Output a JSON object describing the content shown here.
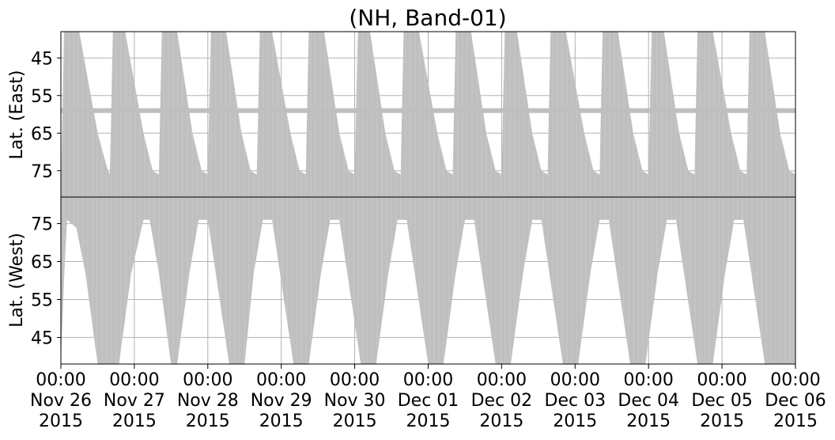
{
  "chart_data": {
    "type": "area",
    "title": "(NH, Band-01)",
    "x_start": "2015-11-26 00:00",
    "x_end": "2015-12-06 00:00",
    "x_ticks": [
      {
        "time": "00:00",
        "date": "Nov 26",
        "year": "2015"
      },
      {
        "time": "00:00",
        "date": "Nov 27",
        "year": "2015"
      },
      {
        "time": "00:00",
        "date": "Nov 28",
        "year": "2015"
      },
      {
        "time": "00:00",
        "date": "Nov 29",
        "year": "2015"
      },
      {
        "time": "00:00",
        "date": "Nov 30",
        "year": "2015"
      },
      {
        "time": "00:00",
        "date": "Dec 01",
        "year": "2015"
      },
      {
        "time": "00:00",
        "date": "Dec 02",
        "year": "2015"
      },
      {
        "time": "00:00",
        "date": "Dec 03",
        "year": "2015"
      },
      {
        "time": "00:00",
        "date": "Dec 04",
        "year": "2015"
      },
      {
        "time": "00:00",
        "date": "Dec 05",
        "year": "2015"
      },
      {
        "time": "00:00",
        "date": "Dec 06",
        "year": "2015"
      }
    ],
    "grid": true,
    "color": "#bfbfbf",
    "panels": [
      {
        "name": "east",
        "ylabel": "Lat. (East)",
        "yticks": [
          45,
          55,
          65,
          75
        ],
        "ylim": [
          38,
          82
        ],
        "y_inverted": true,
        "stripe_latitude": 59,
        "coverage": [
          {
            "x": "2015-11-26 00:00",
            "lat": 82
          },
          {
            "x": "2015-11-26 01:00",
            "lat": 38
          },
          {
            "x": "2015-11-26 06:00",
            "lat": 38
          },
          {
            "x": "2015-11-26 12:00",
            "lat": 65
          },
          {
            "x": "2015-11-26 15:00",
            "lat": 74
          },
          {
            "x": "2015-11-26 16:00",
            "lat": 76
          },
          {
            "x": "2015-11-26 17:00",
            "lat": 38
          },
          {
            "x": "2015-11-26 21:00",
            "lat": 38
          },
          {
            "x": "2015-11-27 03:00",
            "lat": 65
          },
          {
            "x": "2015-11-27 06:00",
            "lat": 75
          },
          {
            "x": "2015-11-27 08:00",
            "lat": 76
          },
          {
            "x": "2015-11-27 09:00",
            "lat": 38
          },
          {
            "x": "2015-11-27 14:00",
            "lat": 38
          },
          {
            "x": "2015-11-27 19:00",
            "lat": 65
          },
          {
            "x": "2015-11-27 22:00",
            "lat": 75
          },
          {
            "x": "2015-11-28 00:00",
            "lat": 76
          },
          {
            "x": "2015-11-28 01:00",
            "lat": 38
          },
          {
            "x": "2015-11-28 06:00",
            "lat": 38
          },
          {
            "x": "2015-11-28 11:00",
            "lat": 65
          },
          {
            "x": "2015-11-28 14:00",
            "lat": 75
          },
          {
            "x": "2015-11-28 16:00",
            "lat": 76
          },
          {
            "x": "2015-11-28 17:00",
            "lat": 38
          },
          {
            "x": "2015-11-28 21:00",
            "lat": 38
          },
          {
            "x": "2015-11-29 03:00",
            "lat": 65
          },
          {
            "x": "2015-11-29 06:00",
            "lat": 75
          },
          {
            "x": "2015-11-29 08:00",
            "lat": 76
          },
          {
            "x": "2015-11-29 09:00",
            "lat": 38
          },
          {
            "x": "2015-11-29 14:00",
            "lat": 38
          },
          {
            "x": "2015-11-29 19:00",
            "lat": 65
          },
          {
            "x": "2015-11-29 22:00",
            "lat": 75
          },
          {
            "x": "2015-11-30 00:00",
            "lat": 76
          },
          {
            "x": "2015-11-30 01:00",
            "lat": 38
          },
          {
            "x": "2015-11-30 05:00",
            "lat": 38
          },
          {
            "x": "2015-11-30 10:00",
            "lat": 65
          },
          {
            "x": "2015-11-30 13:00",
            "lat": 75
          },
          {
            "x": "2015-11-30 15:00",
            "lat": 76
          },
          {
            "x": "2015-11-30 16:00",
            "lat": 38
          },
          {
            "x": "2015-11-30 21:00",
            "lat": 38
          },
          {
            "x": "2015-12-01 03:00",
            "lat": 65
          },
          {
            "x": "2015-12-01 06:00",
            "lat": 75
          },
          {
            "x": "2015-12-01 08:00",
            "lat": 76
          },
          {
            "x": "2015-12-01 09:00",
            "lat": 38
          },
          {
            "x": "2015-12-01 14:00",
            "lat": 38
          },
          {
            "x": "2015-12-01 19:00",
            "lat": 65
          },
          {
            "x": "2015-12-01 22:00",
            "lat": 75
          },
          {
            "x": "2015-12-02 00:00",
            "lat": 76
          },
          {
            "x": "2015-12-02 01:00",
            "lat": 38
          },
          {
            "x": "2015-12-02 05:00",
            "lat": 38
          },
          {
            "x": "2015-12-02 10:00",
            "lat": 65
          },
          {
            "x": "2015-12-02 13:00",
            "lat": 75
          },
          {
            "x": "2015-12-02 15:00",
            "lat": 76
          },
          {
            "x": "2015-12-02 16:00",
            "lat": 38
          },
          {
            "x": "2015-12-02 21:00",
            "lat": 38
          },
          {
            "x": "2015-12-03 03:00",
            "lat": 65
          },
          {
            "x": "2015-12-03 06:00",
            "lat": 75
          },
          {
            "x": "2015-12-03 08:00",
            "lat": 76
          },
          {
            "x": "2015-12-03 09:00",
            "lat": 38
          },
          {
            "x": "2015-12-03 14:00",
            "lat": 38
          },
          {
            "x": "2015-12-03 19:00",
            "lat": 65
          },
          {
            "x": "2015-12-03 22:00",
            "lat": 75
          },
          {
            "x": "2015-12-04 00:00",
            "lat": 76
          },
          {
            "x": "2015-12-04 01:00",
            "lat": 38
          },
          {
            "x": "2015-12-04 05:00",
            "lat": 38
          },
          {
            "x": "2015-12-04 10:00",
            "lat": 65
          },
          {
            "x": "2015-12-04 13:00",
            "lat": 75
          },
          {
            "x": "2015-12-04 15:00",
            "lat": 76
          },
          {
            "x": "2015-12-04 16:00",
            "lat": 38
          },
          {
            "x": "2015-12-04 21:00",
            "lat": 38
          },
          {
            "x": "2015-12-05 03:00",
            "lat": 65
          },
          {
            "x": "2015-12-05 06:00",
            "lat": 75
          },
          {
            "x": "2015-12-05 08:00",
            "lat": 76
          },
          {
            "x": "2015-12-05 09:00",
            "lat": 38
          },
          {
            "x": "2015-12-05 14:00",
            "lat": 38
          },
          {
            "x": "2015-12-05 19:00",
            "lat": 65
          },
          {
            "x": "2015-12-05 22:00",
            "lat": 75
          },
          {
            "x": "2015-12-06 00:00",
            "lat": 76
          }
        ]
      },
      {
        "name": "west",
        "ylabel": "Lat. (West)",
        "yticks": [
          45,
          55,
          65,
          75
        ],
        "ylim": [
          38,
          82
        ],
        "y_inverted": false,
        "stripe_latitude": null,
        "coverage": [
          {
            "x": "2015-11-26 00:00",
            "lat": 38
          },
          {
            "x": "2015-11-26 01:00",
            "lat": 60
          },
          {
            "x": "2015-11-26 02:00",
            "lat": 76
          },
          {
            "x": "2015-11-26 05:00",
            "lat": 74
          },
          {
            "x": "2015-11-26 08:00",
            "lat": 62
          },
          {
            "x": "2015-11-26 12:00",
            "lat": 38
          },
          {
            "x": "2015-11-26 19:00",
            "lat": 38
          },
          {
            "x": "2015-11-26 23:00",
            "lat": 62
          },
          {
            "x": "2015-11-27 03:00",
            "lat": 76
          },
          {
            "x": "2015-11-27 05:00",
            "lat": 76
          },
          {
            "x": "2015-11-27 08:00",
            "lat": 62
          },
          {
            "x": "2015-11-27 12:00",
            "lat": 38
          },
          {
            "x": "2015-11-27 14:00",
            "lat": 38
          },
          {
            "x": "2015-11-27 18:00",
            "lat": 62
          },
          {
            "x": "2015-11-27 21:00",
            "lat": 76
          },
          {
            "x": "2015-11-28 00:00",
            "lat": 76
          },
          {
            "x": "2015-11-28 07:00",
            "lat": 38
          },
          {
            "x": "2015-11-28 12:00",
            "lat": 38
          },
          {
            "x": "2015-11-28 15:00",
            "lat": 62
          },
          {
            "x": "2015-11-28 18:00",
            "lat": 76
          },
          {
            "x": "2015-11-28 21:00",
            "lat": 76
          },
          {
            "x": "2015-11-29 04:00",
            "lat": 38
          },
          {
            "x": "2015-11-29 09:00",
            "lat": 38
          },
          {
            "x": "2015-11-29 13:00",
            "lat": 62
          },
          {
            "x": "2015-11-29 16:00",
            "lat": 76
          },
          {
            "x": "2015-11-29 19:00",
            "lat": 76
          },
          {
            "x": "2015-11-30 02:00",
            "lat": 38
          },
          {
            "x": "2015-11-30 07:00",
            "lat": 38
          },
          {
            "x": "2015-11-30 11:00",
            "lat": 62
          },
          {
            "x": "2015-11-30 14:00",
            "lat": 76
          },
          {
            "x": "2015-11-30 17:00",
            "lat": 76
          },
          {
            "x": "2015-12-01 00:00",
            "lat": 38
          },
          {
            "x": "2015-12-01 05:00",
            "lat": 38
          },
          {
            "x": "2015-12-01 09:00",
            "lat": 62
          },
          {
            "x": "2015-12-01 12:00",
            "lat": 76
          },
          {
            "x": "2015-12-01 15:00",
            "lat": 76
          },
          {
            "x": "2015-12-01 22:00",
            "lat": 38
          },
          {
            "x": "2015-12-02 03:00",
            "lat": 38
          },
          {
            "x": "2015-12-02 07:00",
            "lat": 62
          },
          {
            "x": "2015-12-02 10:00",
            "lat": 76
          },
          {
            "x": "2015-12-02 13:00",
            "lat": 76
          },
          {
            "x": "2015-12-02 20:00",
            "lat": 38
          },
          {
            "x": "2015-12-03 01:00",
            "lat": 38
          },
          {
            "x": "2015-12-03 05:00",
            "lat": 62
          },
          {
            "x": "2015-12-03 08:00",
            "lat": 76
          },
          {
            "x": "2015-12-03 11:00",
            "lat": 76
          },
          {
            "x": "2015-12-03 18:00",
            "lat": 38
          },
          {
            "x": "2015-12-03 23:00",
            "lat": 38
          },
          {
            "x": "2015-12-04 03:00",
            "lat": 62
          },
          {
            "x": "2015-12-04 06:00",
            "lat": 76
          },
          {
            "x": "2015-12-04 09:00",
            "lat": 76
          },
          {
            "x": "2015-12-04 16:00",
            "lat": 38
          },
          {
            "x": "2015-12-04 21:00",
            "lat": 38
          },
          {
            "x": "2015-12-05 01:00",
            "lat": 62
          },
          {
            "x": "2015-12-05 04:00",
            "lat": 76
          },
          {
            "x": "2015-12-05 07:00",
            "lat": 76
          },
          {
            "x": "2015-12-05 14:00",
            "lat": 38
          },
          {
            "x": "2015-12-06 00:00",
            "lat": 38
          }
        ]
      }
    ]
  }
}
